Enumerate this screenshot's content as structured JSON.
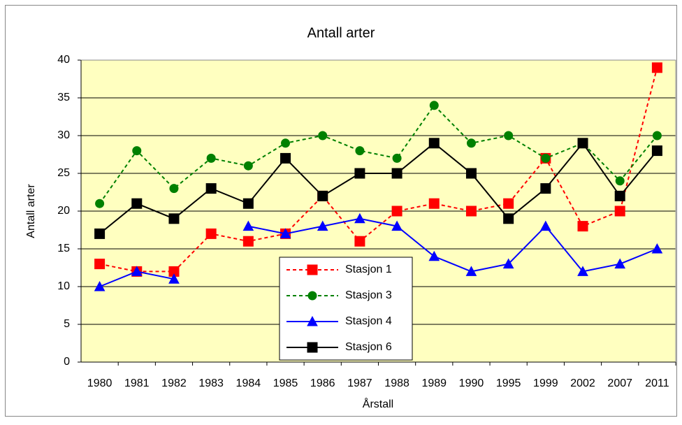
{
  "chart_data": {
    "type": "line",
    "title": "Antall arter",
    "x_label": "Årstall",
    "y_label": "Antall arter",
    "categories": [
      "1980",
      "1981",
      "1982",
      "1983",
      "1984",
      "1985",
      "1986",
      "1987",
      "1988",
      "1989",
      "1990",
      "1995",
      "1999",
      "2002",
      "2007",
      "2011"
    ],
    "series": [
      {
        "name": "Stasjon 1",
        "color": "#ff0000",
        "line_style": "dashed",
        "marker": "square",
        "values": [
          13,
          12,
          12,
          17,
          16,
          17,
          22,
          16,
          20,
          21,
          20,
          21,
          27,
          18,
          20,
          39
        ]
      },
      {
        "name": "Stasjon 3",
        "color": "#008000",
        "line_style": "dashed",
        "marker": "circle",
        "values": [
          21,
          28,
          23,
          27,
          26,
          29,
          30,
          28,
          27,
          34,
          29,
          30,
          27,
          29,
          24,
          30
        ]
      },
      {
        "name": "Stasjon 4",
        "color": "#0000ff",
        "line_style": "solid",
        "marker": "triangle",
        "values": [
          10,
          12,
          11,
          null,
          18,
          17,
          18,
          19,
          18,
          14,
          12,
          13,
          18,
          12,
          13,
          15
        ]
      },
      {
        "name": "Stasjon 6",
        "color": "#000000",
        "line_style": "solid",
        "marker": "square",
        "values": [
          17,
          21,
          19,
          23,
          21,
          27,
          22,
          25,
          25,
          29,
          25,
          19,
          23,
          29,
          22,
          28
        ]
      }
    ],
    "ylim": [
      0,
      40
    ],
    "yticks": [
      0,
      5,
      10,
      15,
      20,
      25,
      30,
      35,
      40
    ],
    "grid": true,
    "plot_background": "#ffffc0"
  }
}
